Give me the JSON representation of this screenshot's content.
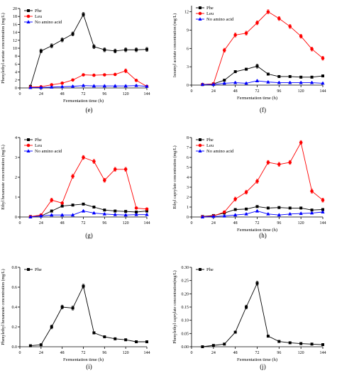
{
  "chart_data": [
    {
      "type": "line",
      "panel_label": "(e)",
      "xlabel": "Fermentation time (h)",
      "ylabel": "Phenylethyl acetate concentration (mg/L)",
      "xticks": [
        0,
        24,
        48,
        72,
        96,
        120,
        144
      ],
      "ylim": [
        0,
        20
      ],
      "yticks": [
        0,
        2,
        4,
        6,
        8,
        10,
        12,
        14,
        16,
        18,
        20
      ],
      "legend_position": "top-left",
      "x": [
        12,
        24,
        36,
        48,
        60,
        72,
        84,
        96,
        108,
        120,
        132,
        144
      ],
      "series": [
        {
          "name": "Phe",
          "color": "#000000",
          "marker": "square",
          "values": [
            0.4,
            9.3,
            10.6,
            12.1,
            13.6,
            18.5,
            10.4,
            9.6,
            9.3,
            9.6,
            9.6,
            9.7
          ]
        },
        {
          "name": "Leu",
          "color": "#ff0000",
          "marker": "circle",
          "values": [
            0.2,
            0.3,
            0.8,
            1.2,
            2.0,
            3.3,
            3.2,
            3.3,
            3.4,
            4.3,
            1.9,
            0.4
          ]
        },
        {
          "name": "No amino acid",
          "color": "#0000ff",
          "marker": "triangle",
          "values": [
            0.1,
            0.1,
            0.2,
            0.3,
            0.4,
            0.6,
            0.5,
            0.5,
            0.5,
            0.5,
            0.6,
            0.4
          ]
        }
      ]
    },
    {
      "type": "line",
      "panel_label": "(f)",
      "xlabel": "Fermentation time (h)",
      "ylabel": "Isoamyl acetate concentration (mg/L)",
      "xticks": [
        0,
        24,
        48,
        72,
        96,
        120,
        144
      ],
      "ylim": [
        0,
        13
      ],
      "yticks": [
        0,
        3,
        6,
        9,
        12
      ],
      "legend_position": "top-left",
      "x": [
        12,
        24,
        36,
        48,
        60,
        72,
        84,
        96,
        108,
        120,
        132,
        144
      ],
      "series": [
        {
          "name": "Phe",
          "color": "#000000",
          "marker": "square",
          "values": [
            0.1,
            0.2,
            0.8,
            2.2,
            2.6,
            3.1,
            1.8,
            1.4,
            1.4,
            1.3,
            1.3,
            1.5
          ]
        },
        {
          "name": "Leu",
          "color": "#ff0000",
          "marker": "circle",
          "values": [
            0.1,
            0.2,
            5.7,
            8.2,
            8.5,
            10.2,
            12.0,
            10.9,
            9.6,
            8.0,
            5.9,
            4.4
          ]
        },
        {
          "name": "No amino acid",
          "color": "#0000ff",
          "marker": "triangle",
          "values": [
            0.1,
            0.1,
            0.3,
            0.4,
            0.3,
            0.7,
            0.5,
            0.4,
            0.4,
            0.4,
            0.4,
            0.3
          ]
        }
      ]
    },
    {
      "type": "line",
      "panel_label": "(g)",
      "xlabel": "",
      "ylabel": "Ethyl hexanoate concentration (mg/L)",
      "xticks": [
        0,
        24,
        48,
        72,
        96,
        120,
        144
      ],
      "ylim": [
        0,
        4
      ],
      "yticks": [
        0,
        1,
        2,
        3,
        4
      ],
      "legend_position": "top-left",
      "x": [
        12,
        24,
        36,
        48,
        60,
        72,
        84,
        96,
        108,
        120,
        132,
        144
      ],
      "series": [
        {
          "name": "Phe",
          "color": "#000000",
          "marker": "square",
          "values": [
            0.02,
            0.05,
            0.3,
            0.55,
            0.6,
            0.65,
            0.5,
            0.35,
            0.3,
            0.28,
            0.25,
            0.3
          ]
        },
        {
          "name": "Leu",
          "color": "#ff0000",
          "marker": "circle",
          "values": [
            0.02,
            0.1,
            0.85,
            0.7,
            2.05,
            3.0,
            2.8,
            1.85,
            2.4,
            2.4,
            0.45,
            0.4
          ]
        },
        {
          "name": "No amino acid",
          "color": "#0000ff",
          "marker": "triangle",
          "values": [
            0.0,
            0.05,
            0.1,
            0.1,
            0.1,
            0.3,
            0.2,
            0.15,
            0.12,
            0.1,
            0.12,
            0.12
          ]
        }
      ]
    },
    {
      "type": "line",
      "panel_label": "(h)",
      "xlabel": "Fermentation time (h)",
      "ylabel": "Ethyl caprylate concentration (mg/L)",
      "xticks": [
        0,
        24,
        48,
        72,
        96,
        120,
        144
      ],
      "ylim": [
        0,
        8
      ],
      "yticks": [
        0,
        1,
        2,
        3,
        4,
        5,
        6,
        7,
        8
      ],
      "legend_position": "top-left",
      "x": [
        12,
        24,
        36,
        48,
        60,
        72,
        84,
        96,
        108,
        120,
        132,
        144
      ],
      "series": [
        {
          "name": "Phe",
          "color": "#000000",
          "marker": "square",
          "values": [
            0.05,
            0.15,
            0.4,
            0.75,
            0.8,
            1.05,
            0.9,
            0.95,
            0.9,
            0.9,
            0.7,
            0.75
          ]
        },
        {
          "name": "Leu",
          "color": "#ff0000",
          "marker": "circle",
          "values": [
            0.02,
            0.1,
            0.5,
            1.8,
            2.5,
            3.6,
            5.5,
            5.3,
            5.5,
            7.5,
            2.6,
            1.7
          ]
        },
        {
          "name": "No amino acid",
          "color": "#0000ff",
          "marker": "triangle",
          "values": [
            0.0,
            0.05,
            0.1,
            0.2,
            0.3,
            0.6,
            0.3,
            0.2,
            0.3,
            0.35,
            0.4,
            0.5
          ]
        }
      ]
    },
    {
      "type": "line",
      "panel_label": "(i)",
      "xlabel": "Fermentation time (h)",
      "ylabel": "Phenylethyl hexanoate concentration (mg/L)",
      "xticks": [
        0,
        24,
        48,
        72,
        96,
        120,
        144
      ],
      "ylim": [
        0,
        0.8
      ],
      "yticks": [
        0.0,
        0.2,
        0.4,
        0.6,
        0.8
      ],
      "legend_position": "top-left",
      "x": [
        12,
        24,
        36,
        48,
        60,
        72,
        84,
        96,
        108,
        120,
        132,
        144
      ],
      "series": [
        {
          "name": "Phe",
          "color": "#000000",
          "marker": "square",
          "values": [
            0.01,
            0.02,
            0.2,
            0.4,
            0.39,
            0.61,
            0.14,
            0.1,
            0.08,
            0.07,
            0.05,
            0.05
          ]
        }
      ]
    },
    {
      "type": "line",
      "panel_label": "(j)",
      "xlabel": "Fermentation time (h)",
      "ylabel": "Phenylethyl caprylate concentration(mg/L)",
      "xticks": [
        0,
        24,
        48,
        72,
        96,
        120,
        144
      ],
      "ylim": [
        0,
        0.3
      ],
      "yticks": [
        0.0,
        0.05,
        0.1,
        0.15,
        0.2,
        0.25,
        0.3
      ],
      "legend_position": "top-left",
      "x": [
        12,
        24,
        36,
        48,
        60,
        72,
        84,
        96,
        108,
        120,
        132,
        144
      ],
      "series": [
        {
          "name": "Phe",
          "color": "#000000",
          "marker": "square",
          "values": [
            0.0,
            0.005,
            0.01,
            0.055,
            0.15,
            0.24,
            0.04,
            0.02,
            0.015,
            0.012,
            0.01,
            0.008
          ]
        }
      ]
    }
  ]
}
